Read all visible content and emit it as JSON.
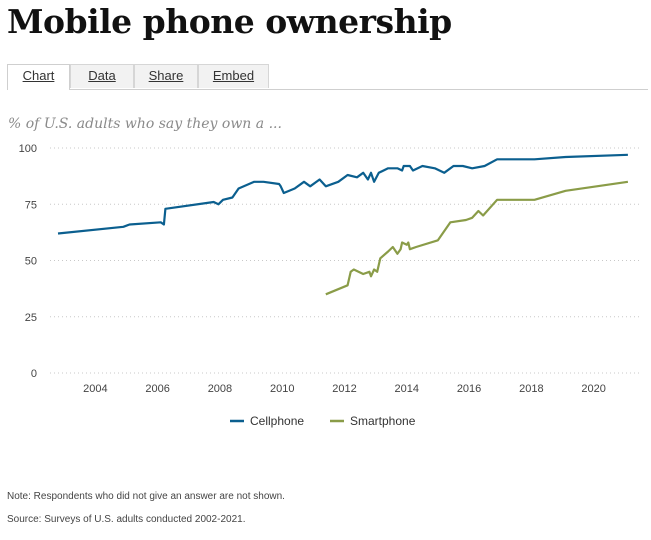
{
  "page": {
    "title": "Mobile phone ownership",
    "tabs": [
      {
        "label": "Chart",
        "active": true
      },
      {
        "label": "Data",
        "active": false
      },
      {
        "label": "Share",
        "active": false
      },
      {
        "label": "Embed",
        "active": false
      }
    ],
    "note": "Note: Respondents who did not give an answer are not shown.",
    "source": "Source: Surveys of U.S. adults conducted 2002-2021."
  },
  "chart_data": {
    "type": "line",
    "title": "Mobile phone ownership",
    "subtitle": "% of U.S. adults who say they own a ...",
    "xlim": [
      2002.8,
      2021.2
    ],
    "ylim": [
      0,
      100
    ],
    "x_ticks": [
      2004,
      2006,
      2008,
      2010,
      2012,
      2014,
      2016,
      2018,
      2020
    ],
    "y_ticks": [
      0,
      25,
      50,
      75,
      100
    ],
    "grid": "horizontal dotted",
    "legend_position": "bottom",
    "series": [
      {
        "name": "Cellphone",
        "color": "#0b5f8f",
        "points": [
          [
            2002.8,
            62
          ],
          [
            2004.9,
            65
          ],
          [
            2005.1,
            66
          ],
          [
            2006.1,
            67
          ],
          [
            2006.2,
            66
          ],
          [
            2006.25,
            73
          ],
          [
            2007.8,
            76
          ],
          [
            2007.95,
            75
          ],
          [
            2008.1,
            77
          ],
          [
            2008.4,
            78
          ],
          [
            2008.6,
            82
          ],
          [
            2009.1,
            85
          ],
          [
            2009.4,
            85
          ],
          [
            2009.9,
            84
          ],
          [
            2009.95,
            83
          ],
          [
            2010.05,
            80
          ],
          [
            2010.4,
            82
          ],
          [
            2010.7,
            85
          ],
          [
            2010.9,
            83
          ],
          [
            2011.2,
            86
          ],
          [
            2011.4,
            83
          ],
          [
            2011.8,
            85
          ],
          [
            2012.1,
            88
          ],
          [
            2012.4,
            87
          ],
          [
            2012.6,
            89
          ],
          [
            2012.75,
            86
          ],
          [
            2012.85,
            89
          ],
          [
            2012.95,
            85
          ],
          [
            2013.1,
            89
          ],
          [
            2013.4,
            91
          ],
          [
            2013.7,
            91
          ],
          [
            2013.85,
            90
          ],
          [
            2013.9,
            92
          ],
          [
            2014.1,
            92
          ],
          [
            2014.2,
            90
          ],
          [
            2014.5,
            92
          ],
          [
            2014.9,
            91
          ],
          [
            2015.2,
            89
          ],
          [
            2015.5,
            92
          ],
          [
            2015.8,
            92
          ],
          [
            2016.1,
            91
          ],
          [
            2016.5,
            92
          ],
          [
            2016.9,
            95
          ],
          [
            2018.1,
            95
          ],
          [
            2019.1,
            96
          ],
          [
            2021.1,
            97
          ]
        ]
      },
      {
        "name": "Smartphone",
        "color": "#8a9c48",
        "points": [
          [
            2011.4,
            35
          ],
          [
            2012.1,
            39
          ],
          [
            2012.2,
            45
          ],
          [
            2012.3,
            46
          ],
          [
            2012.6,
            44
          ],
          [
            2012.8,
            45
          ],
          [
            2012.85,
            43
          ],
          [
            2012.95,
            46
          ],
          [
            2013.05,
            45
          ],
          [
            2013.15,
            51
          ],
          [
            2013.4,
            54
          ],
          [
            2013.55,
            56
          ],
          [
            2013.7,
            53
          ],
          [
            2013.8,
            55
          ],
          [
            2013.85,
            58
          ],
          [
            2014.0,
            57
          ],
          [
            2014.05,
            58
          ],
          [
            2014.1,
            55
          ],
          [
            2014.3,
            56
          ],
          [
            2015.0,
            59
          ],
          [
            2015.4,
            67
          ],
          [
            2015.9,
            68
          ],
          [
            2016.1,
            69
          ],
          [
            2016.3,
            72
          ],
          [
            2016.45,
            70
          ],
          [
            2016.9,
            77
          ],
          [
            2018.1,
            77
          ],
          [
            2019.1,
            81
          ],
          [
            2021.1,
            85
          ]
        ]
      }
    ]
  }
}
